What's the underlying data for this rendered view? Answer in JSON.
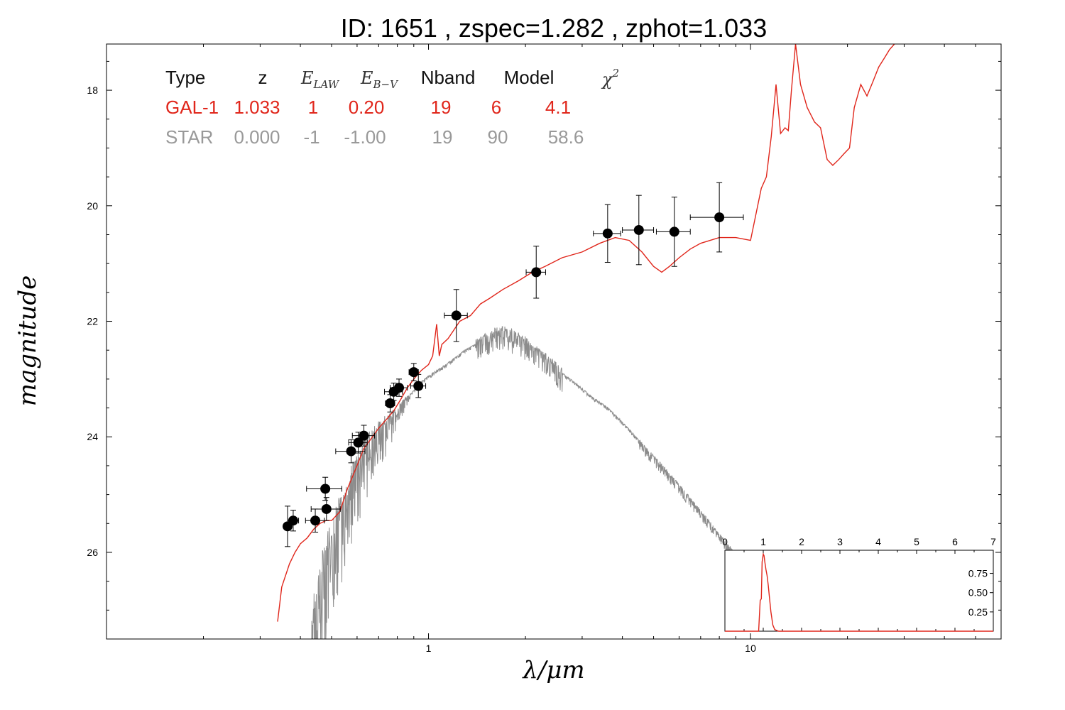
{
  "chart_data": {
    "type": "line",
    "title": "ID:  1651  , zspec=1.282 , zphot=1.033",
    "xlabel": "λ/μm",
    "ylabel": "magnitude",
    "xscale": "log",
    "xlim": [
      0.1,
      60
    ],
    "ylim": [
      27.5,
      17.2
    ],
    "x_ticks": [
      {
        "v": 1,
        "label": "1"
      },
      {
        "v": 10,
        "label": "10"
      }
    ],
    "y_ticks": [
      {
        "v": 18,
        "label": "18"
      },
      {
        "v": 20,
        "label": "20"
      },
      {
        "v": 22,
        "label": "22"
      },
      {
        "v": 24,
        "label": "24"
      },
      {
        "v": 26,
        "label": "26"
      }
    ],
    "colors": {
      "galaxy": "#e0261b",
      "star": "#8c8c8c",
      "points": "#000000"
    },
    "fit_table": {
      "headers": {
        "type": "Type",
        "z": "z",
        "elaw": "E",
        "elaw_sub": "LAW",
        "ebv": "E",
        "ebv_sub": "B−V",
        "nband": "Nband",
        "model": "Model",
        "chi2": "χ",
        "chi2_sup": "2"
      },
      "rows": [
        {
          "type": "GAL-1",
          "z": "1.033",
          "elaw": "1",
          "ebv": "0.20",
          "nband": "19",
          "model": "6",
          "chi2": "4.1"
        },
        {
          "type": "STAR",
          "z": "0.000",
          "elaw": "-1",
          "ebv": "-1.00",
          "nband": "19",
          "model": "90",
          "chi2": "58.6"
        }
      ]
    },
    "series": [
      {
        "role": "galaxy-template",
        "x": [
          0.34,
          0.35,
          0.37,
          0.385,
          0.4,
          0.42,
          0.44,
          0.46,
          0.48,
          0.5,
          0.53,
          0.56,
          0.6,
          0.63,
          0.66,
          0.7,
          0.74,
          0.78,
          0.82,
          0.86,
          0.9,
          0.95,
          1.0,
          1.03,
          1.06,
          1.08,
          1.1,
          1.15,
          1.25,
          1.35,
          1.45,
          1.55,
          1.7,
          1.9,
          2.1,
          2.3,
          2.6,
          3.0,
          3.4,
          3.8,
          4.2,
          4.6,
          5.0,
          5.3,
          5.6,
          6.0,
          6.5,
          7.0,
          8.0,
          9.0,
          10.0,
          10.8,
          11.2,
          11.6,
          12.0,
          12.4,
          12.8,
          13.1,
          13.4,
          13.8,
          14.3,
          15.0,
          15.8,
          16.5,
          17.3,
          18.0,
          18.8,
          19.5,
          20.3,
          21.0,
          22.0,
          23.0,
          24.0,
          25.0,
          26.0,
          27.0,
          28.5
        ],
        "y": [
          27.2,
          26.6,
          26.2,
          26.0,
          25.85,
          25.75,
          25.6,
          25.5,
          25.45,
          25.45,
          25.3,
          24.9,
          24.5,
          24.2,
          24.05,
          23.85,
          23.7,
          23.55,
          23.35,
          23.15,
          23.0,
          22.85,
          22.75,
          22.6,
          22.05,
          22.6,
          22.4,
          22.3,
          22.0,
          21.9,
          21.7,
          21.6,
          21.45,
          21.3,
          21.15,
          21.05,
          20.9,
          20.8,
          20.65,
          20.55,
          20.6,
          20.8,
          21.05,
          21.15,
          21.05,
          20.9,
          20.75,
          20.65,
          20.55,
          20.55,
          20.6,
          19.7,
          19.5,
          18.8,
          17.9,
          18.75,
          18.65,
          18.7,
          18.0,
          17.2,
          17.9,
          18.3,
          18.55,
          18.65,
          19.2,
          19.3,
          19.2,
          19.1,
          19.0,
          18.3,
          17.9,
          18.1,
          17.85,
          17.6,
          17.45,
          17.3,
          17.15
        ]
      },
      {
        "role": "star-template",
        "x": [
          0.43,
          0.45,
          0.47,
          0.49,
          0.51,
          0.53,
          0.55,
          0.57,
          0.59,
          0.62,
          0.65,
          0.68,
          0.72,
          0.76,
          0.8,
          0.85,
          0.9,
          0.95,
          1.0,
          1.1,
          1.2,
          1.3,
          1.4,
          1.5,
          1.6,
          1.7,
          1.8,
          2.0,
          2.2,
          2.4,
          2.6,
          2.9,
          3.2,
          3.6,
          4.0,
          4.4,
          4.8,
          5.3,
          6.0,
          7.0,
          8.0,
          9.0,
          10.0,
          10.5,
          11.0
        ],
        "y": [
          27.5,
          26.8,
          26.3,
          25.9,
          25.6,
          25.35,
          25.1,
          24.85,
          24.6,
          24.35,
          24.15,
          23.95,
          23.8,
          23.7,
          23.55,
          23.35,
          23.2,
          23.05,
          22.95,
          22.8,
          22.65,
          22.5,
          22.4,
          22.3,
          22.2,
          22.15,
          22.2,
          22.35,
          22.55,
          22.7,
          22.9,
          23.1,
          23.3,
          23.5,
          23.75,
          24.0,
          24.25,
          24.5,
          24.85,
          25.3,
          25.7,
          26.05,
          26.35,
          26.5,
          26.65
        ]
      }
    ],
    "photometry": [
      {
        "x": 0.365,
        "y": 25.55,
        "xerr": 0.008,
        "yerr": 0.35
      },
      {
        "x": 0.38,
        "y": 25.45,
        "xerr": 0.015,
        "yerr": 0.18
      },
      {
        "x": 0.445,
        "y": 25.45,
        "xerr": 0.03,
        "yerr": 0.2
      },
      {
        "x": 0.478,
        "y": 24.9,
        "xerr": 0.06,
        "yerr": 0.2
      },
      {
        "x": 0.482,
        "y": 25.25,
        "xerr": 0.05,
        "yerr": 0.2
      },
      {
        "x": 0.575,
        "y": 24.25,
        "xerr": 0.06,
        "yerr": 0.2
      },
      {
        "x": 0.605,
        "y": 24.1,
        "xerr": 0.04,
        "yerr": 0.18
      },
      {
        "x": 0.63,
        "y": 23.98,
        "xerr": 0.05,
        "yerr": 0.18
      },
      {
        "x": 0.76,
        "y": 23.42,
        "xerr": 0.025,
        "yerr": 0.15
      },
      {
        "x": 0.78,
        "y": 23.22,
        "xerr": 0.05,
        "yerr": 0.15
      },
      {
        "x": 0.81,
        "y": 23.15,
        "xerr": 0.05,
        "yerr": 0.15
      },
      {
        "x": 0.9,
        "y": 22.88,
        "xerr": 0.03,
        "yerr": 0.15
      },
      {
        "x": 0.93,
        "y": 23.12,
        "xerr": 0.05,
        "yerr": 0.2
      },
      {
        "x": 1.22,
        "y": 21.9,
        "xerr": 0.1,
        "yerr": 0.45
      },
      {
        "x": 2.16,
        "y": 21.15,
        "xerr": 0.15,
        "yerr": 0.45
      },
      {
        "x": 3.6,
        "y": 20.48,
        "xerr": 0.35,
        "yerr": 0.5
      },
      {
        "x": 4.5,
        "y": 20.42,
        "xerr": 0.5,
        "yerr": 0.6
      },
      {
        "x": 5.8,
        "y": 20.45,
        "xerr": 0.7,
        "yerr": 0.6
      },
      {
        "x": 8.0,
        "y": 20.2,
        "xerr": 1.5,
        "yerr": 0.6
      }
    ],
    "inset": {
      "type": "line",
      "description_role": "pdf-z",
      "xlim": [
        0,
        7
      ],
      "ylim": [
        0,
        1.05
      ],
      "x_ticks": [
        {
          "v": 0,
          "label": "0"
        },
        {
          "v": 1,
          "label": "1"
        },
        {
          "v": 2,
          "label": "2"
        },
        {
          "v": 3,
          "label": "3"
        },
        {
          "v": 4,
          "label": "4"
        },
        {
          "v": 5,
          "label": "5"
        },
        {
          "v": 6,
          "label": "6"
        },
        {
          "v": 7,
          "label": "7"
        }
      ],
      "y_ticks": [
        {
          "v": 0.25,
          "label": "0.25"
        },
        {
          "v": 0.5,
          "label": "0.50"
        },
        {
          "v": 0.75,
          "label": "0.75"
        }
      ],
      "x": [
        0,
        0.88,
        0.9,
        0.92,
        0.95,
        0.97,
        1.0,
        1.02,
        1.04,
        1.07,
        1.1,
        1.13,
        1.16,
        1.2,
        1.25,
        1.3,
        1.4,
        7.0
      ],
      "y": [
        0.0,
        0.0,
        0.2,
        0.4,
        0.42,
        0.9,
        1.0,
        0.98,
        0.9,
        0.8,
        0.72,
        0.6,
        0.45,
        0.25,
        0.08,
        0.02,
        0.0,
        0.0
      ]
    }
  }
}
